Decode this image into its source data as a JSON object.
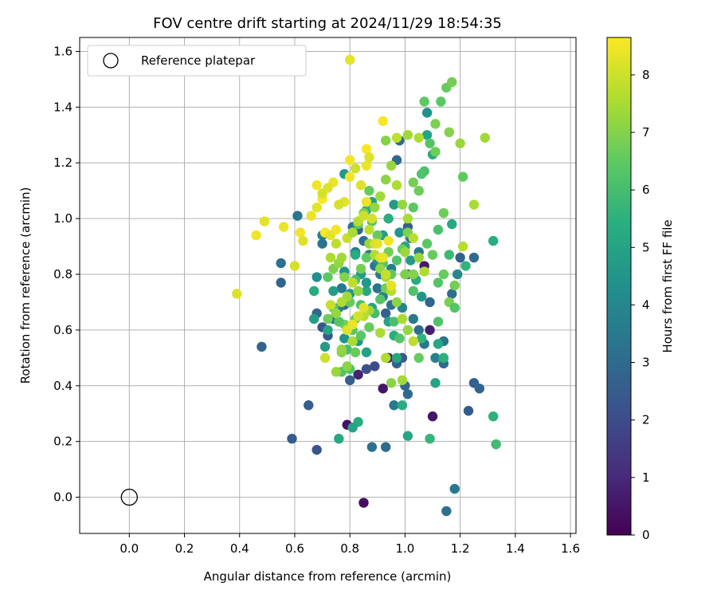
{
  "chart_data": {
    "type": "scatter",
    "title": "FOV centre drift starting at 2024/11/29 18:54:35",
    "xlabel": "Angular distance from reference (arcmin)",
    "ylabel": "Rotation from reference (arcmin)",
    "xlim": [
      -0.18,
      1.62
    ],
    "ylim": [
      -0.13,
      1.65
    ],
    "xticks": [
      0.0,
      0.2,
      0.4,
      0.6,
      0.8,
      1.0,
      1.2,
      1.4,
      1.6
    ],
    "yticks": [
      0.0,
      0.2,
      0.4,
      0.6,
      0.8,
      1.0,
      1.2,
      1.4,
      1.6
    ],
    "grid": true,
    "legend": {
      "placement": "top-left",
      "entries": [
        {
          "label": "Reference platepar",
          "marker": "open-circle"
        }
      ]
    },
    "reference_point": {
      "x": 0.0,
      "y": 0.0
    },
    "colorbar": {
      "label": "Hours from first FF file",
      "min": 0,
      "max": 8.65,
      "ticks": [
        0,
        1,
        2,
        3,
        4,
        5,
        6,
        7,
        8
      ],
      "colormap": "viridis"
    },
    "points": [
      [
        0.85,
        -0.02,
        0.3
      ],
      [
        0.79,
        0.26,
        0.4
      ],
      [
        0.92,
        0.39,
        0.5
      ],
      [
        0.83,
        0.44,
        0.8
      ],
      [
        0.94,
        0.5,
        0.9
      ],
      [
        1.07,
        0.83,
        0.6
      ],
      [
        1.09,
        0.6,
        0.7
      ],
      [
        1.1,
        0.29,
        0.5
      ],
      [
        0.68,
        0.17,
        2.3
      ],
      [
        0.59,
        0.21,
        2.5
      ],
      [
        0.65,
        0.33,
        2.6
      ],
      [
        0.48,
        0.54,
        2.8
      ],
      [
        0.7,
        0.61,
        2.2
      ],
      [
        0.72,
        0.58,
        2.4
      ],
      [
        0.86,
        0.46,
        2.1
      ],
      [
        0.89,
        0.47,
        2.0
      ],
      [
        0.99,
        0.5,
        2.4
      ],
      [
        0.8,
        0.42,
        2.6
      ],
      [
        0.97,
        0.48,
        2.7
      ],
      [
        1.14,
        0.48,
        3.0
      ],
      [
        1.18,
        0.03,
        3.5
      ],
      [
        1.15,
        -0.05,
        3.2
      ],
      [
        1.23,
        0.31,
        2.5
      ],
      [
        1.25,
        0.41,
        2.6
      ],
      [
        1.27,
        0.39,
        2.8
      ],
      [
        1.25,
        0.86,
        3.0
      ],
      [
        1.2,
        0.86,
        2.7
      ],
      [
        0.93,
        0.18,
        3.0
      ],
      [
        0.88,
        0.18,
        3.2
      ],
      [
        1.0,
        0.4,
        2.8
      ],
      [
        1.01,
        0.37,
        3.0
      ],
      [
        0.96,
        0.33,
        3.5
      ],
      [
        0.55,
        0.77,
        2.8
      ],
      [
        0.55,
        0.84,
        3.2
      ],
      [
        0.61,
        1.01,
        3.4
      ],
      [
        0.7,
        0.94,
        3.8
      ],
      [
        0.7,
        0.91,
        3.3
      ],
      [
        0.77,
        0.75,
        3.5
      ],
      [
        0.81,
        0.97,
        3.2
      ],
      [
        0.83,
        0.96,
        2.9
      ],
      [
        0.85,
        0.92,
        3.1
      ],
      [
        0.87,
        0.87,
        3.3
      ],
      [
        0.89,
        0.83,
        3.4
      ],
      [
        0.91,
        0.8,
        3.6
      ],
      [
        0.93,
        0.66,
        2.7
      ],
      [
        0.95,
        0.69,
        3.2
      ],
      [
        0.97,
        1.21,
        2.9
      ],
      [
        0.98,
        1.28,
        3.0
      ],
      [
        1.01,
        0.97,
        2.6
      ],
      [
        1.01,
        0.8,
        3.2
      ],
      [
        1.03,
        0.64,
        3.5
      ],
      [
        1.05,
        0.6,
        3.1
      ],
      [
        1.07,
        0.55,
        3.4
      ],
      [
        1.09,
        0.7,
        2.8
      ],
      [
        1.11,
        0.5,
        3.7
      ],
      [
        1.14,
        0.56,
        3.3
      ],
      [
        1.17,
        0.73,
        3.1
      ],
      [
        1.19,
        0.8,
        4.0
      ],
      [
        1.02,
        0.93,
        3.1
      ],
      [
        0.95,
        0.82,
        3.6
      ],
      [
        0.78,
        0.69,
        3.0
      ],
      [
        0.76,
        0.68,
        3.6
      ],
      [
        0.74,
        0.64,
        3.3
      ],
      [
        0.68,
        0.66,
        2.9
      ],
      [
        0.82,
        0.88,
        3.7
      ],
      [
        0.9,
        0.75,
        3.3
      ],
      [
        0.92,
        0.72,
        3.8
      ],
      [
        0.99,
        0.68,
        3.9
      ],
      [
        1.05,
        0.88,
        3.5
      ],
      [
        0.76,
        0.21,
        5.2
      ],
      [
        0.83,
        0.27,
        5.3
      ],
      [
        0.81,
        0.25,
        5.0
      ],
      [
        1.01,
        0.22,
        5.1
      ],
      [
        0.99,
        0.33,
        5.4
      ],
      [
        0.97,
        0.5,
        5.1
      ],
      [
        0.86,
        0.52,
        4.9
      ],
      [
        0.83,
        0.56,
        4.6
      ],
      [
        0.78,
        0.57,
        4.4
      ],
      [
        0.71,
        0.54,
        4.7
      ],
      [
        0.67,
        0.64,
        4.8
      ],
      [
        0.67,
        0.74,
        5.3
      ],
      [
        0.68,
        0.79,
        4.3
      ],
      [
        0.74,
        0.74,
        4.8
      ],
      [
        0.78,
        0.81,
        4.4
      ],
      [
        0.8,
        0.73,
        4.5
      ],
      [
        0.82,
        0.87,
        5.3
      ],
      [
        0.84,
        0.8,
        4.7
      ],
      [
        0.86,
        0.74,
        5.2
      ],
      [
        0.88,
        0.68,
        5.0
      ],
      [
        0.9,
        0.85,
        4.4
      ],
      [
        0.92,
        0.94,
        4.8
      ],
      [
        0.94,
        1.0,
        5.4
      ],
      [
        0.96,
        1.05,
        4.7
      ],
      [
        0.98,
        0.95,
        4.5
      ],
      [
        1.0,
        0.9,
        5.1
      ],
      [
        1.02,
        0.85,
        4.7
      ],
      [
        1.04,
        0.78,
        5.3
      ],
      [
        1.06,
        0.72,
        4.5
      ],
      [
        1.08,
        1.38,
        4.4
      ],
      [
        1.08,
        1.3,
        5.0
      ],
      [
        1.1,
        1.23,
        5.3
      ],
      [
        1.12,
        0.55,
        5.2
      ],
      [
        1.11,
        0.41,
        5.0
      ],
      [
        1.14,
        0.5,
        5.5
      ],
      [
        1.17,
        0.98,
        5.2
      ],
      [
        1.22,
        0.83,
        5.6
      ],
      [
        1.33,
        0.19,
        5.9
      ],
      [
        1.32,
        0.29,
        5.5
      ],
      [
        1.32,
        0.92,
        5.4
      ],
      [
        1.16,
        0.87,
        5.8
      ],
      [
        1.09,
        0.21,
        5.7
      ],
      [
        1.06,
        0.57,
        5.6
      ],
      [
        0.78,
        1.16,
        4.6
      ],
      [
        0.86,
        1.03,
        5.5
      ],
      [
        0.88,
        1.06,
        4.9
      ],
      [
        0.94,
        0.63,
        4.9
      ],
      [
        0.96,
        0.58,
        5.4
      ],
      [
        0.72,
        0.6,
        5.0
      ],
      [
        0.86,
        0.77,
        4.6
      ],
      [
        0.77,
        0.45,
        6.2
      ],
      [
        0.79,
        0.53,
        6.0
      ],
      [
        0.81,
        0.6,
        6.4
      ],
      [
        0.82,
        0.64,
        6.7
      ],
      [
        0.84,
        0.69,
        6.1
      ],
      [
        0.87,
        0.61,
        6.6
      ],
      [
        0.89,
        0.66,
        6.0
      ],
      [
        0.91,
        0.71,
        6.3
      ],
      [
        0.93,
        0.75,
        6.8
      ],
      [
        0.95,
        0.8,
        6.5
      ],
      [
        0.97,
        0.85,
        6.2
      ],
      [
        0.99,
        0.89,
        6.6
      ],
      [
        1.01,
        0.95,
        6.9
      ],
      [
        1.03,
        1.04,
        6.4
      ],
      [
        1.05,
        1.1,
        6.7
      ],
      [
        1.07,
        1.17,
        6.1
      ],
      [
        1.09,
        1.27,
        6.3
      ],
      [
        1.11,
        1.34,
        6.9
      ],
      [
        1.13,
        1.42,
        6.4
      ],
      [
        1.15,
        1.47,
        6.6
      ],
      [
        1.17,
        1.49,
        6.8
      ],
      [
        1.07,
        1.42,
        6.5
      ],
      [
        1.11,
        1.24,
        6.7
      ],
      [
        1.06,
        1.16,
        6.2
      ],
      [
        1.03,
        1.13,
        6.8
      ],
      [
        1.12,
        0.77,
        6.3
      ],
      [
        1.14,
        0.8,
        6.6
      ],
      [
        1.16,
        0.7,
        6.9
      ],
      [
        1.18,
        0.68,
        6.3
      ],
      [
        1.21,
        1.15,
        6.5
      ],
      [
        1.14,
        1.02,
        6.7
      ],
      [
        1.12,
        0.96,
        6.1
      ],
      [
        1.08,
        0.91,
        6.4
      ],
      [
        1.03,
        0.74,
        6.2
      ],
      [
        1.0,
        0.8,
        6.9
      ],
      [
        0.96,
        0.63,
        6.1
      ],
      [
        0.98,
        0.57,
        6.3
      ],
      [
        1.05,
        0.5,
        6.6
      ],
      [
        1.12,
        0.63,
        6.2
      ],
      [
        1.18,
        0.76,
        6.8
      ],
      [
        1.16,
        1.31,
        7.0
      ],
      [
        1.2,
        1.27,
        7.3
      ],
      [
        1.25,
        1.05,
        7.5
      ],
      [
        1.21,
        0.9,
        7.7
      ],
      [
        1.29,
        1.29,
        7.4
      ],
      [
        1.1,
        0.87,
        6.6
      ],
      [
        0.94,
        0.88,
        6.8
      ],
      [
        0.92,
        0.84,
        6.3
      ],
      [
        0.9,
        0.94,
        6.6
      ],
      [
        0.88,
        0.99,
        6.2
      ],
      [
        0.86,
        0.86,
        6.5
      ],
      [
        0.84,
        0.82,
        6.8
      ],
      [
        0.82,
        0.78,
        6.1
      ],
      [
        0.8,
        0.7,
        6.6
      ],
      [
        0.78,
        0.62,
        6.8
      ],
      [
        0.76,
        0.63,
        6.3
      ],
      [
        0.74,
        0.68,
        6.5
      ],
      [
        0.72,
        0.64,
        6.7
      ],
      [
        0.72,
        0.79,
        6.4
      ],
      [
        0.74,
        0.82,
        6.9
      ],
      [
        0.76,
        0.84,
        7.2
      ],
      [
        0.78,
        0.79,
        7.0
      ],
      [
        0.8,
        0.46,
        6.2
      ],
      [
        0.82,
        0.52,
        6.6
      ],
      [
        0.84,
        0.58,
        6.4
      ],
      [
        0.95,
        0.41,
        7.1
      ],
      [
        0.77,
        0.52,
        7.0
      ],
      [
        0.83,
        0.98,
        6.4
      ],
      [
        0.85,
        1.02,
        6.9
      ],
      [
        0.87,
        1.1,
        6.6
      ],
      [
        0.89,
        1.04,
        7.2
      ],
      [
        0.91,
        1.08,
        7.4
      ],
      [
        0.93,
        1.14,
        7.1
      ],
      [
        0.95,
        1.19,
        7.3
      ],
      [
        0.97,
        1.12,
        7.6
      ],
      [
        0.99,
        1.05,
        7.2
      ],
      [
        1.01,
        1.0,
        7.5
      ],
      [
        1.03,
        0.93,
        7.7
      ],
      [
        1.05,
        0.86,
        7.3
      ],
      [
        1.07,
        0.81,
        7.6
      ],
      [
        0.97,
        1.29,
        7.8
      ],
      [
        1.01,
        1.3,
        7.4
      ],
      [
        1.05,
        1.29,
        7.6
      ],
      [
        0.93,
        1.28,
        7.0
      ],
      [
        0.87,
        0.91,
        7.3
      ],
      [
        0.89,
        0.87,
        7.6
      ],
      [
        0.91,
        0.82,
        7.2
      ],
      [
        0.93,
        0.79,
        7.4
      ],
      [
        0.95,
        0.74,
        7.7
      ],
      [
        0.97,
        0.7,
        7.1
      ],
      [
        0.99,
        0.64,
        7.5
      ],
      [
        1.01,
        0.6,
        7.2
      ],
      [
        1.03,
        0.56,
        7.8
      ],
      [
        0.91,
        0.59,
        7.5
      ],
      [
        0.87,
        0.67,
        7.4
      ],
      [
        0.85,
        0.65,
        7.7
      ],
      [
        0.83,
        0.74,
        7.2
      ],
      [
        0.81,
        0.77,
        7.8
      ],
      [
        0.79,
        0.72,
        7.4
      ],
      [
        0.77,
        0.7,
        7.6
      ],
      [
        0.75,
        0.66,
        7.2
      ],
      [
        0.73,
        0.69,
        7.9
      ],
      [
        0.71,
        0.5,
        8.0
      ],
      [
        0.73,
        0.86,
        7.6
      ],
      [
        0.75,
        0.91,
        7.8
      ],
      [
        0.77,
        0.86,
        7.4
      ],
      [
        0.79,
        0.93,
        7.9
      ],
      [
        0.81,
        0.95,
        7.5
      ],
      [
        0.83,
        0.99,
        7.7
      ],
      [
        0.85,
        1.01,
        8.0
      ],
      [
        0.87,
        0.96,
        7.8
      ],
      [
        0.89,
        0.91,
        8.1
      ],
      [
        0.91,
        0.86,
        8.2
      ],
      [
        0.93,
        0.8,
        7.9
      ],
      [
        0.95,
        0.76,
        8.3
      ],
      [
        0.92,
        0.86,
        8.4
      ],
      [
        0.94,
        0.92,
        8.5
      ],
      [
        0.9,
        0.91,
        8.3
      ],
      [
        0.88,
        1.0,
        8.1
      ],
      [
        0.86,
        1.06,
        8.4
      ],
      [
        0.84,
        1.12,
        8.2
      ],
      [
        0.82,
        1.18,
        8.0
      ],
      [
        0.8,
        1.21,
        8.5
      ],
      [
        0.78,
        1.06,
        8.3
      ],
      [
        0.76,
        1.05,
        8.1
      ],
      [
        0.74,
        1.13,
        8.4
      ],
      [
        0.72,
        1.11,
        8.2
      ],
      [
        0.7,
        1.07,
        8.6
      ],
      [
        0.68,
        1.04,
        8.3
      ],
      [
        0.68,
        1.12,
        8.5
      ],
      [
        0.7,
        1.09,
        8.1
      ],
      [
        0.66,
        1.01,
        8.4
      ],
      [
        0.62,
        0.95,
        8.5
      ],
      [
        0.63,
        0.92,
        8.2
      ],
      [
        0.6,
        0.83,
        8.1
      ],
      [
        0.56,
        0.97,
        8.4
      ],
      [
        0.49,
        0.99,
        8.3
      ],
      [
        0.46,
        0.94,
        8.5
      ],
      [
        0.39,
        0.73,
        8.2
      ],
      [
        0.71,
        0.95,
        8.6
      ],
      [
        0.73,
        0.94,
        8.3
      ],
      [
        0.75,
        0.96,
        8.5
      ],
      [
        0.79,
        0.6,
        8.2
      ],
      [
        0.81,
        0.62,
        8.4
      ],
      [
        0.83,
        0.65,
        8.1
      ],
      [
        0.85,
        0.68,
        8.3
      ],
      [
        0.86,
        1.19,
        8.4
      ],
      [
        0.86,
        1.25,
        8.6
      ],
      [
        0.87,
        1.22,
        8.2
      ],
      [
        0.92,
        1.35,
        8.6
      ],
      [
        0.8,
        1.15,
        8.5
      ],
      [
        0.8,
        1.57,
        8.3
      ],
      [
        0.93,
        0.5,
        7.6
      ],
      [
        0.99,
        0.42,
        7.4
      ],
      [
        1.0,
        0.88,
        7.3
      ],
      [
        1.03,
        0.8,
        7.0
      ],
      [
        0.81,
        0.56,
        7.5
      ],
      [
        0.77,
        0.53,
        7.2
      ],
      [
        0.79,
        0.47,
        7.1
      ],
      [
        0.75,
        0.45,
        7.3
      ]
    ]
  }
}
